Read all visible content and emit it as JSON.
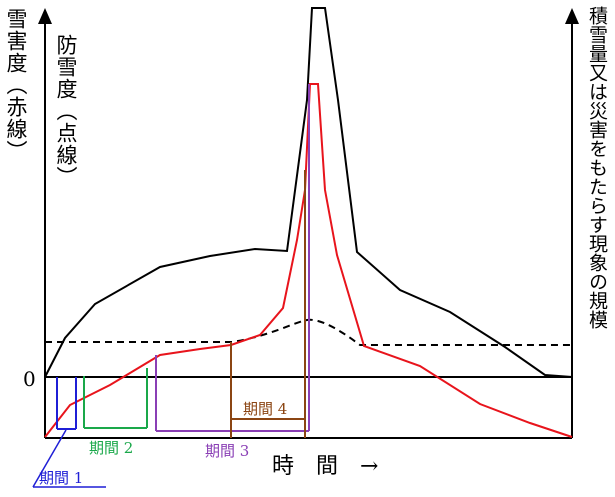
{
  "labels": {
    "left_axis_outer": "雪害度（赤線）",
    "left_axis_inner": "防雪度（点線）",
    "right_axis": "積雪量又は災害をもたらす現象の規模",
    "zero": "0",
    "x_axis": "時　間　→",
    "period1": "期間 1",
    "period2": "期間 2",
    "period3": "期間 3",
    "period4": "期間 4"
  },
  "colors": {
    "black_curve": "#000000",
    "red_curve": "#e8141c",
    "dashed_line": "#000000",
    "period1": "#1f1fd6",
    "period2": "#1aa84a",
    "period3": "#8a3fb5",
    "period4": "#8b4513"
  },
  "icons": {
    "left_axis_arrow": "arrow-up-icon",
    "right_axis_arrow": "arrow-up-icon"
  }
}
